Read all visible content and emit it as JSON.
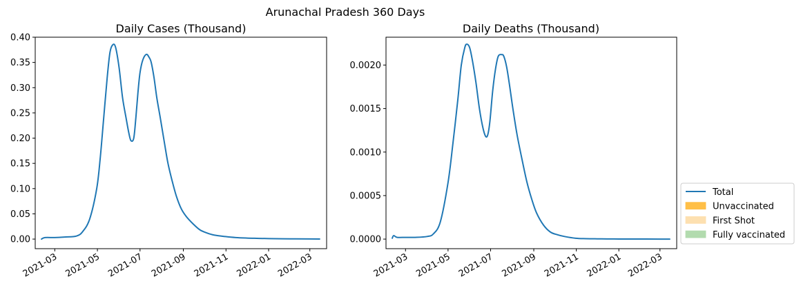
{
  "figure": {
    "title": "Arunachal Pradesh 360 Days"
  },
  "colors": {
    "total": "#1f77b4",
    "unvaccinated": "#ffbf47",
    "first_shot": "#fde0b0",
    "fully_vaccinated": "#b2dbae"
  },
  "legend": {
    "placement": "lower-right outside",
    "items": [
      {
        "label": "Total",
        "kind": "line",
        "color_key": "total"
      },
      {
        "label": "Unvaccinated",
        "kind": "patch",
        "color_key": "unvaccinated"
      },
      {
        "label": "First Shot",
        "kind": "patch",
        "color_key": "first_shot"
      },
      {
        "label": "Fully vaccinated",
        "kind": "patch",
        "color_key": "fully_vaccinated"
      }
    ]
  },
  "chart_data": [
    {
      "type": "line",
      "title": "Daily Cases (Thousand)",
      "xlabel": "",
      "ylabel": "",
      "x_range": [
        "2021-02-01",
        "2022-03-25"
      ],
      "ylim": [
        -0.019,
        0.4
      ],
      "x_ticks": [
        "2021-03",
        "2021-05",
        "2021-07",
        "2021-09",
        "2021-11",
        "2022-01",
        "2022-03"
      ],
      "y_ticks": [
        "0.00",
        "0.05",
        "0.10",
        "0.15",
        "0.20",
        "0.25",
        "0.30",
        "0.35",
        "0.40"
      ],
      "grid": false,
      "series": [
        {
          "name": "Total",
          "x": [
            "2021-02-10",
            "2021-02-15",
            "2021-03-01",
            "2021-03-15",
            "2021-04-01",
            "2021-04-10",
            "2021-04-20",
            "2021-04-30",
            "2021-05-05",
            "2021-05-10",
            "2021-05-15",
            "2021-05-19",
            "2021-05-23",
            "2021-05-27",
            "2021-06-01",
            "2021-06-06",
            "2021-06-11",
            "2021-06-15",
            "2021-06-18",
            "2021-06-22",
            "2021-06-25",
            "2021-06-28",
            "2021-07-01",
            "2021-07-05",
            "2021-07-10",
            "2021-07-14",
            "2021-07-17",
            "2021-07-21",
            "2021-07-25",
            "2021-07-30",
            "2021-08-05",
            "2021-08-10",
            "2021-08-16",
            "2021-08-22",
            "2021-08-29",
            "2021-09-05",
            "2021-09-15",
            "2021-09-25",
            "2021-10-05",
            "2021-10-15",
            "2021-10-31",
            "2021-11-15",
            "2021-12-01",
            "2021-12-15",
            "2022-01-01",
            "2022-02-01",
            "2022-03-01",
            "2022-03-15"
          ],
          "y": [
            0.0,
            0.003,
            0.003,
            0.004,
            0.006,
            0.015,
            0.04,
            0.1,
            0.16,
            0.24,
            0.32,
            0.37,
            0.385,
            0.38,
            0.34,
            0.28,
            0.24,
            0.21,
            0.195,
            0.2,
            0.24,
            0.29,
            0.33,
            0.355,
            0.366,
            0.36,
            0.35,
            0.32,
            0.28,
            0.24,
            0.19,
            0.15,
            0.115,
            0.085,
            0.06,
            0.045,
            0.03,
            0.018,
            0.012,
            0.008,
            0.005,
            0.003,
            0.002,
            0.0015,
            0.001,
            0.0005,
            0.0002,
            0.0001
          ]
        }
      ]
    },
    {
      "type": "line",
      "title": "Daily Deaths (Thousand)",
      "xlabel": "",
      "ylabel": "",
      "x_range": [
        "2021-02-01",
        "2022-03-25"
      ],
      "ylim": [
        -0.00011,
        0.00232
      ],
      "x_ticks": [
        "2021-03",
        "2021-05",
        "2021-07",
        "2021-09",
        "2021-11",
        "2022-01",
        "2022-03"
      ],
      "y_ticks": [
        "0.0000",
        "0.0005",
        "0.0010",
        "0.0015",
        "0.0020"
      ],
      "grid": false,
      "series": [
        {
          "name": "Total",
          "x": [
            "2021-02-10",
            "2021-02-12",
            "2021-02-17",
            "2021-03-01",
            "2021-03-15",
            "2021-04-01",
            "2021-04-10",
            "2021-04-20",
            "2021-05-01",
            "2021-05-08",
            "2021-05-15",
            "2021-05-20",
            "2021-05-25",
            "2021-05-28",
            "2021-06-01",
            "2021-06-05",
            "2021-06-10",
            "2021-06-15",
            "2021-06-20",
            "2021-06-24",
            "2021-06-27",
            "2021-06-30",
            "2021-07-04",
            "2021-07-08",
            "2021-07-12",
            "2021-07-17",
            "2021-07-20",
            "2021-07-24",
            "2021-07-28",
            "2021-08-02",
            "2021-08-08",
            "2021-08-15",
            "2021-08-22",
            "2021-08-29",
            "2021-09-05",
            "2021-09-15",
            "2021-09-25",
            "2021-10-05",
            "2021-10-15",
            "2021-10-31",
            "2021-11-15",
            "2021-12-01",
            "2021-12-15",
            "2022-01-01",
            "2022-02-01",
            "2022-03-01",
            "2022-03-15"
          ],
          "y": [
            1e-05,
            4e-05,
            2e-05,
            2e-05,
            2e-05,
            3e-05,
            6e-05,
            0.0002,
            0.00065,
            0.0011,
            0.0016,
            0.002,
            0.0022,
            0.00224,
            0.0022,
            0.00205,
            0.0018,
            0.0015,
            0.00128,
            0.00118,
            0.0012,
            0.00135,
            0.0017,
            0.00195,
            0.0021,
            0.00212,
            0.0021,
            0.00198,
            0.00178,
            0.0015,
            0.0012,
            0.00092,
            0.00066,
            0.00046,
            0.0003,
            0.00016,
            8e-05,
            5e-05,
            3e-05,
            1e-05,
            5e-06,
            3e-06,
            2e-06,
            1e-06,
            5e-07,
            2e-07,
            1e-07
          ]
        }
      ]
    }
  ]
}
